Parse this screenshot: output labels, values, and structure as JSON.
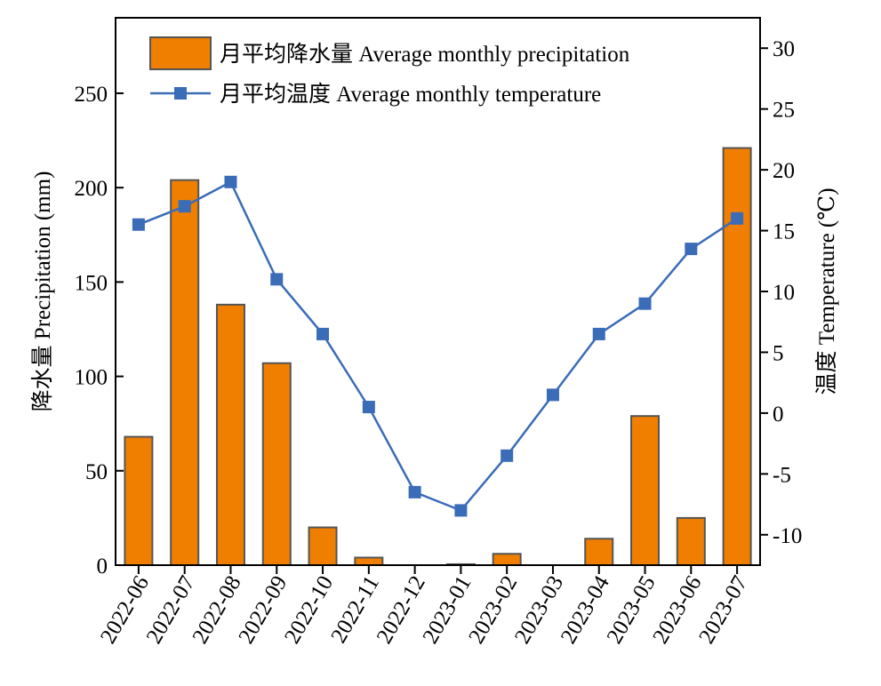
{
  "chart_data": {
    "type": "bar+line",
    "categories": [
      "2022-06",
      "2022-07",
      "2022-08",
      "2022-09",
      "2022-10",
      "2022-11",
      "2022-12",
      "2023-01",
      "2023-02",
      "2023-03",
      "2023-04",
      "2023-05",
      "2023-06",
      "2023-07"
    ],
    "series": [
      {
        "name": "月平均降水量 Average monthly precipitation",
        "type": "bar",
        "axis": "left",
        "color": "#f07f00",
        "values": [
          68,
          204,
          138,
          107,
          20,
          4,
          0,
          0.5,
          6,
          0,
          14,
          79,
          25,
          221
        ]
      },
      {
        "name": "月平均温度 Average monthly temperature",
        "type": "line",
        "axis": "right",
        "color": "#3b6cb7",
        "marker": "square",
        "values": [
          15.5,
          17,
          19,
          11,
          6.5,
          0.5,
          -6.5,
          -8,
          -3.5,
          1.5,
          6.5,
          9,
          13.5,
          16
        ]
      }
    ],
    "ylabel": "降水量 Precipitation (mm)",
    "y2label": "温度 Temperature (℃)",
    "ylim": [
      0,
      290
    ],
    "y2lim": [
      -12.5,
      32.5
    ],
    "yticks": [
      "0",
      "50",
      "100",
      "150",
      "200",
      "250"
    ],
    "y2ticks": [
      "-10",
      "-5",
      "0",
      "5",
      "10",
      "15",
      "20",
      "25",
      "30"
    ],
    "legend_position": "top-left",
    "grid": false
  }
}
